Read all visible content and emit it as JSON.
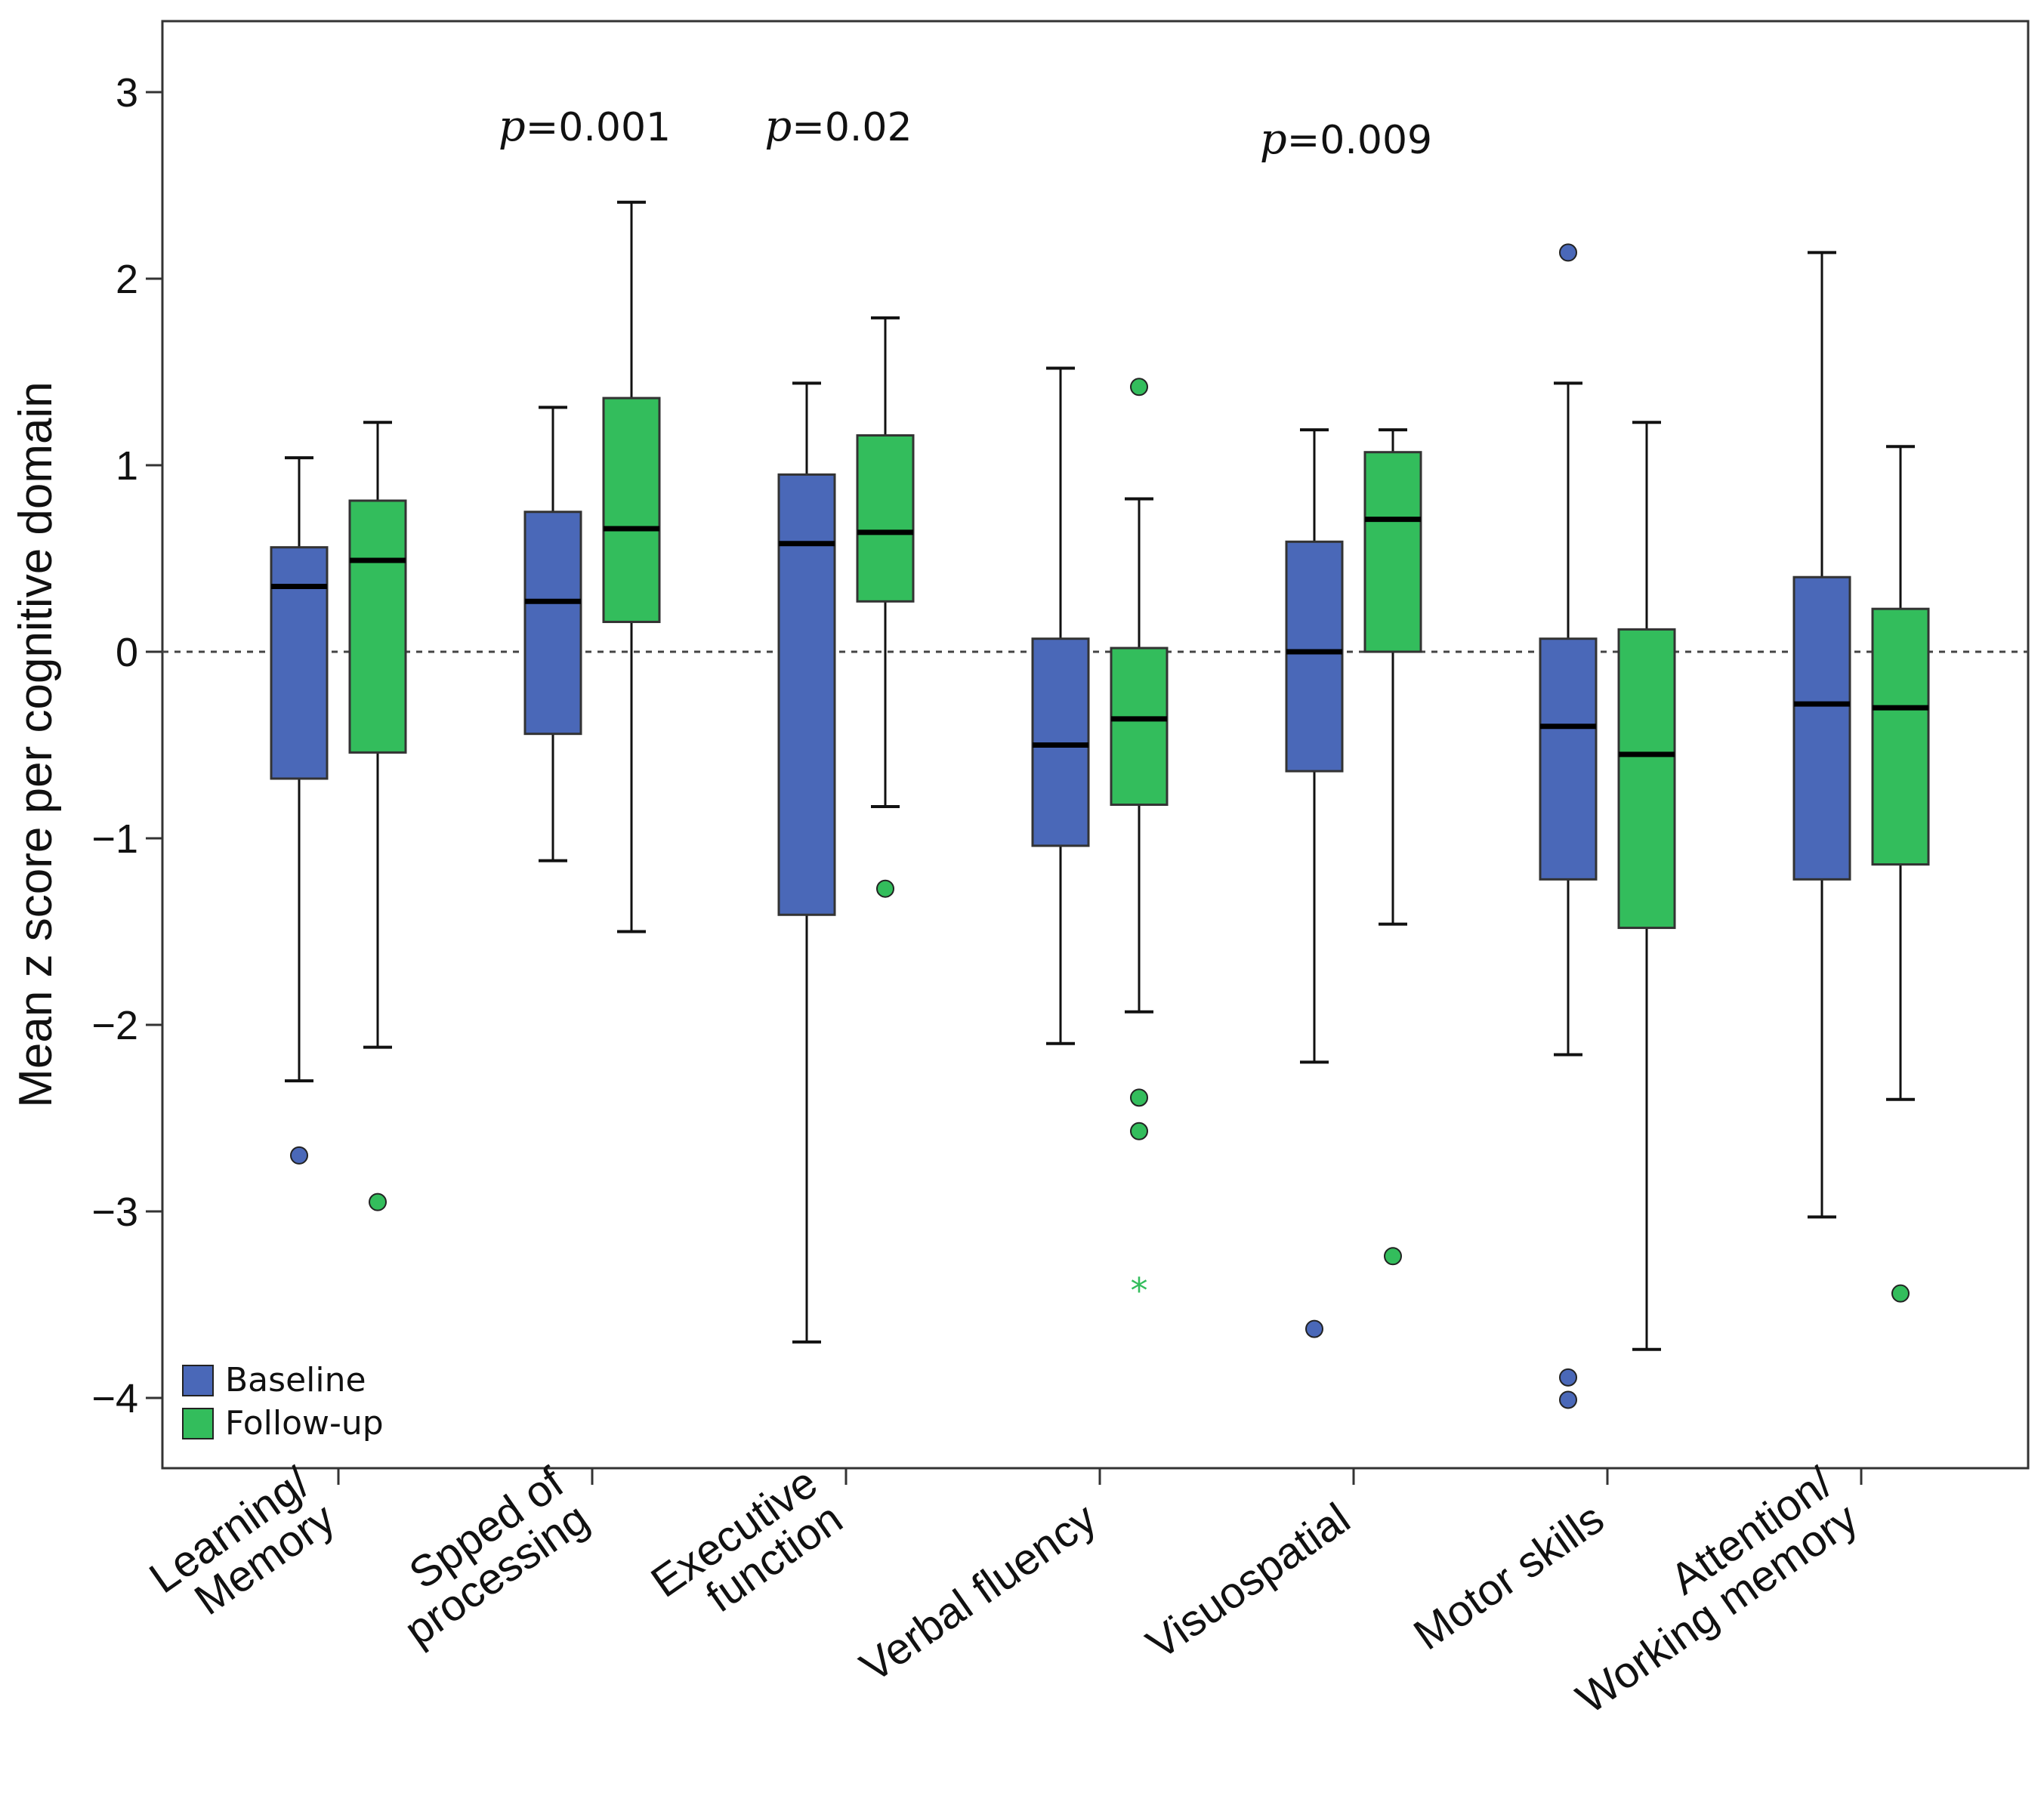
{
  "chart_data": {
    "type": "boxplot",
    "ylabel": "Mean z score per cognitive domain",
    "ylim": [
      -4.4,
      3.4
    ],
    "yticks": [
      3,
      2,
      1,
      0,
      -1,
      -2,
      -3,
      -4
    ],
    "ytick_labels": [
      "3",
      "2",
      "1",
      "0",
      "−1",
      "−2",
      "−3",
      "−4"
    ],
    "reference_line": 0,
    "categories": [
      [
        "Learning/",
        "Memory"
      ],
      [
        "Spped of",
        "processing"
      ],
      [
        "Executive",
        "function"
      ],
      [
        "Verbal fluency"
      ],
      [
        "Visuospatial"
      ],
      [
        "Motor skills"
      ],
      [
        "Attention/",
        "Working memory"
      ]
    ],
    "series": [
      {
        "name": "Baseline",
        "color": "#4a68b8",
        "boxes": [
          {
            "whisker_low": -2.3,
            "q1": -0.68,
            "median": 0.35,
            "q3": 0.56,
            "whisker_high": 1.04,
            "outliers": [
              -2.7
            ],
            "extremes": []
          },
          {
            "whisker_low": -1.12,
            "q1": -0.44,
            "median": 0.27,
            "q3": 0.75,
            "whisker_high": 1.31,
            "outliers": [],
            "extremes": []
          },
          {
            "whisker_low": -3.7,
            "q1": -1.41,
            "median": 0.58,
            "q3": 0.95,
            "whisker_high": 1.44,
            "outliers": [],
            "extremes": []
          },
          {
            "whisker_low": -2.1,
            "q1": -1.04,
            "median": -0.5,
            "q3": 0.07,
            "whisker_high": 1.52,
            "outliers": [],
            "extremes": []
          },
          {
            "whisker_low": -2.2,
            "q1": -0.64,
            "median": 0.0,
            "q3": 0.59,
            "whisker_high": 1.19,
            "outliers": [
              -3.63
            ],
            "extremes": []
          },
          {
            "whisker_low": -2.16,
            "q1": -1.22,
            "median": -0.4,
            "q3": 0.07,
            "whisker_high": 1.44,
            "outliers": [
              2.14,
              -3.89,
              -4.01
            ],
            "extremes": []
          },
          {
            "whisker_low": -3.03,
            "q1": -1.22,
            "median": -0.28,
            "q3": 0.4,
            "whisker_high": 2.14,
            "outliers": [],
            "extremes": []
          }
        ]
      },
      {
        "name": "Follow-up",
        "color": "#33bd5c",
        "boxes": [
          {
            "whisker_low": -2.12,
            "q1": -0.54,
            "median": 0.49,
            "q3": 0.81,
            "whisker_high": 1.23,
            "outliers": [
              -2.95
            ],
            "extremes": []
          },
          {
            "whisker_low": -1.5,
            "q1": 0.16,
            "median": 0.66,
            "q3": 1.36,
            "whisker_high": 2.41,
            "outliers": [],
            "extremes": []
          },
          {
            "whisker_low": -0.83,
            "q1": 0.27,
            "median": 0.64,
            "q3": 1.16,
            "whisker_high": 1.79,
            "outliers": [
              -1.27
            ],
            "extremes": []
          },
          {
            "whisker_low": -1.93,
            "q1": -0.82,
            "median": -0.36,
            "q3": 0.02,
            "whisker_high": 0.82,
            "outliers": [
              1.42,
              -2.39,
              -2.57
            ],
            "extremes": [
              -3.4
            ]
          },
          {
            "whisker_low": -1.46,
            "q1": 0.0,
            "median": 0.71,
            "q3": 1.07,
            "whisker_high": 1.19,
            "outliers": [
              -3.24
            ],
            "extremes": []
          },
          {
            "whisker_low": -3.74,
            "q1": -1.48,
            "median": -0.55,
            "q3": 0.12,
            "whisker_high": 1.23,
            "outliers": [],
            "extremes": []
          },
          {
            "whisker_low": -2.4,
            "q1": -1.14,
            "median": -0.3,
            "q3": 0.23,
            "whisker_high": 1.1,
            "outliers": [
              -3.44
            ],
            "extremes": []
          }
        ]
      }
    ],
    "annotations": [
      {
        "category_index": 1,
        "p_label": "p",
        "text": "=0.001"
      },
      {
        "category_index": 2,
        "p_label": "p",
        "text": "=0.02"
      },
      {
        "category_index": 4,
        "p_label": "p",
        "text": "=0.009"
      }
    ],
    "legend": {
      "position": "bottom-left",
      "items": [
        "Baseline",
        "Follow-up"
      ]
    }
  }
}
